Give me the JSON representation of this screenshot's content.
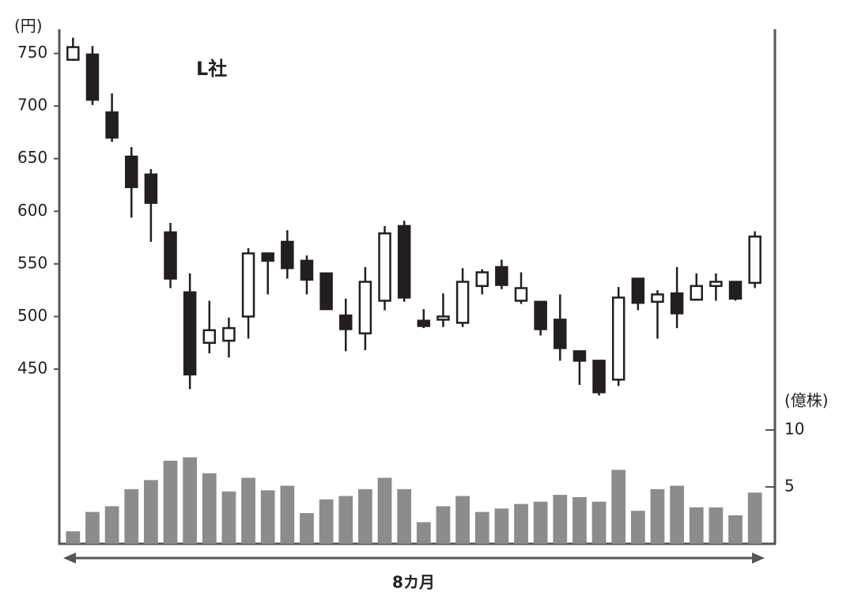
{
  "chart_data": {
    "type": "candlestick",
    "title": "L社",
    "ylabel": "(円)",
    "y2label": "(億株)",
    "xlabel": "8カ月",
    "open": [
      744,
      749,
      694,
      652,
      635,
      580,
      523,
      475,
      477,
      500,
      560,
      571,
      553,
      541,
      501,
      484,
      515,
      586,
      496,
      497,
      494,
      529,
      547,
      515,
      514,
      497,
      467,
      458,
      440,
      536,
      514,
      522,
      516,
      529,
      533,
      532
    ],
    "high": [
      765,
      757,
      712,
      661,
      640,
      589,
      541,
      515,
      499,
      565,
      560,
      582,
      558,
      541,
      517,
      547,
      586,
      591,
      507,
      522,
      546,
      545,
      554,
      542,
      515,
      521,
      467,
      458,
      528,
      536,
      525,
      547,
      541,
      541,
      533,
      581
    ],
    "low": [
      743,
      701,
      666,
      594,
      571,
      527,
      431,
      465,
      461,
      479,
      521,
      536,
      521,
      507,
      467,
      468,
      506,
      514,
      489,
      490,
      490,
      521,
      526,
      512,
      482,
      458,
      435,
      425,
      434,
      506,
      479,
      489,
      515,
      515,
      515,
      527
    ],
    "close": [
      756,
      706,
      670,
      623,
      608,
      536,
      445,
      487,
      489,
      560,
      553,
      546,
      535,
      507,
      488,
      533,
      579,
      518,
      491,
      500,
      533,
      542,
      530,
      527,
      488,
      470,
      458,
      428,
      518,
      513,
      521,
      503,
      529,
      533,
      517,
      576
    ],
    "volume": [
      1.1,
      2.8,
      3.3,
      4.8,
      5.6,
      7.3,
      7.6,
      6.2,
      4.6,
      5.8,
      4.7,
      5.1,
      2.7,
      3.9,
      4.2,
      4.8,
      5.8,
      4.8,
      1.9,
      3.3,
      4.2,
      2.8,
      3.1,
      3.5,
      3.7,
      4.3,
      4.1,
      3.7,
      6.5,
      2.9,
      4.8,
      5.1,
      3.2,
      3.2,
      2.5,
      4.5
    ],
    "up_color": "#ffffff",
    "down_color": "#231f20",
    "volume_color": "#8c8c8c",
    "ylim": [
      284,
      773
    ],
    "yticks": [
      450,
      500,
      550,
      600,
      650,
      700,
      750
    ],
    "y2lim": [
      0,
      45.2
    ],
    "y2ticks": [
      5,
      10
    ]
  }
}
